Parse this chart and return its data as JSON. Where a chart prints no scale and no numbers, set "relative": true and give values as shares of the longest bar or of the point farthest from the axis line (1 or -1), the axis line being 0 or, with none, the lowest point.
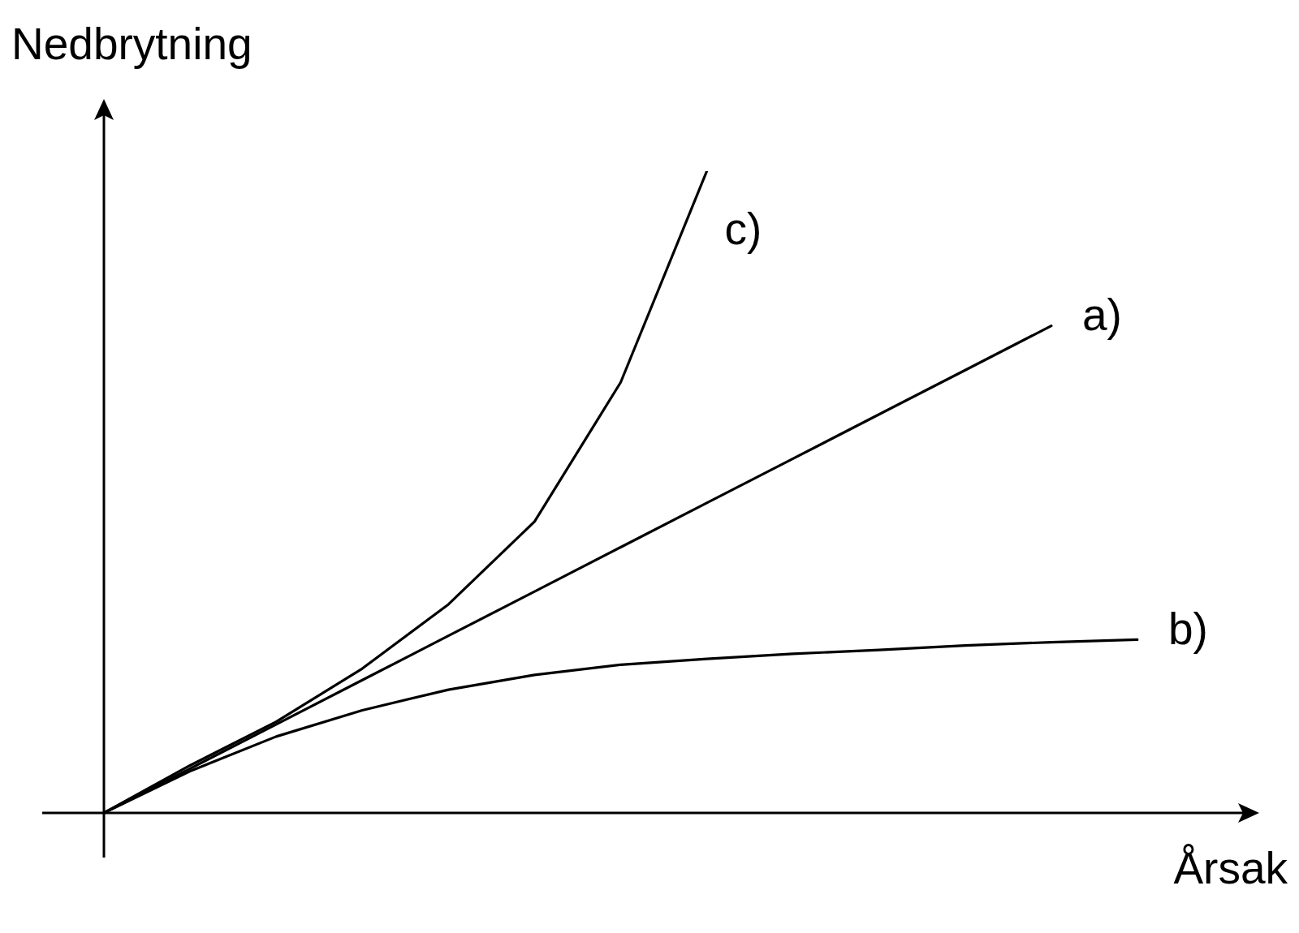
{
  "chart_data": {
    "type": "line",
    "relative": true,
    "xlabel": "Årsak",
    "ylabel": "Nedbrytning",
    "marker": "none",
    "line_style": "solid",
    "categories": [
      null,
      null,
      null,
      null,
      null,
      null,
      null,
      null,
      null,
      null,
      null,
      null,
      null
    ],
    "series": [
      {
        "name": "c)",
        "color": "#000000",
        "values": [
          0,
          0.074,
          0.142,
          0.225,
          0.325,
          0.454,
          0.671,
          1,
          null,
          null,
          null,
          null,
          null
        ]
      },
      {
        "name": "a)",
        "color": "#000000",
        "values": [
          0,
          0.069,
          0.138,
          0.207,
          0.276,
          0.345,
          0.414,
          0.483,
          0.552,
          0.621,
          0.69,
          0.759,
          null
        ]
      },
      {
        "name": "b)",
        "color": "#000000",
        "values": [
          0,
          0.065,
          0.119,
          0.16,
          0.192,
          0.215,
          0.231,
          0.24,
          0.248,
          0.254,
          0.261,
          0.266,
          0.27
        ]
      }
    ]
  }
}
